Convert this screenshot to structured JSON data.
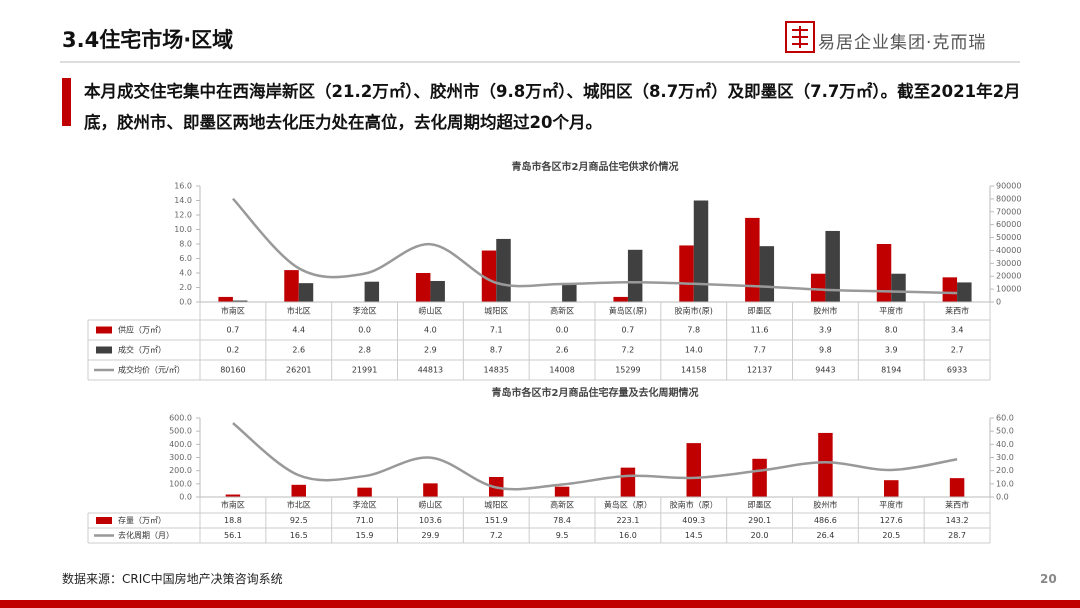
{
  "header": {
    "title": "3.4住宅市场·区域",
    "logo": "易居企业集团·克而瑞"
  },
  "summary": "本月成交住宅集中在西海岸新区（21.2万㎡）、胶州市（9.8万㎡）、城阳区（8.7万㎡）及即墨区（7.7万㎡）。截至2021年2月底，胶州市、即墨区两地去化压力处在高位，去化周期均超过20个月。",
  "footer": {
    "source": "数据来源：CRIC中国房地产决策咨询系统",
    "page": "20"
  },
  "chart_data": [
    {
      "type": "bar",
      "title": "青岛市各区市2月商品住宅供求价情况",
      "categories": [
        "市南区",
        "市北区",
        "李沧区",
        "崂山区",
        "城阳区",
        "高新区",
        "黄岛区(原)",
        "胶南市(原)",
        "即墨区",
        "胶州市",
        "平度市",
        "莱西市"
      ],
      "series": [
        {
          "name": "供应（万㎡）",
          "color": "#c00000",
          "values": [
            0.7,
            4.4,
            0.0,
            4.0,
            7.1,
            0.0,
            0.7,
            7.8,
            11.6,
            3.9,
            8.0,
            3.4
          ],
          "value_labels": [
            "0.7",
            "4.4",
            "0.0",
            "4.0",
            "7.1",
            "0.0",
            "0.7",
            "7.8",
            "11.6",
            "3.9",
            "8.0",
            "3.4"
          ]
        },
        {
          "name": "成交（万㎡）",
          "color": "#404040",
          "values": [
            0.2,
            2.6,
            2.8,
            2.9,
            8.7,
            2.6,
            7.2,
            14.0,
            7.7,
            9.8,
            3.9,
            2.7
          ],
          "value_labels": [
            "0.2",
            "2.6",
            "2.8",
            "2.9",
            "8.7",
            "2.6",
            "7.2",
            "14.0",
            "7.7",
            "9.8",
            "3.9",
            "2.7"
          ]
        },
        {
          "name": "成交均价（元/㎡）",
          "color": "#999999",
          "type": "line",
          "axis": "y2",
          "values": [
            80160,
            26201,
            21991,
            44813,
            14835,
            14008,
            15299,
            14158,
            12137,
            9443,
            8194,
            6933
          ]
        }
      ],
      "ylim": [
        0,
        16
      ],
      "yticks": [
        {
          "value": 0,
          "label": "0.0"
        },
        {
          "value": 2,
          "label": "2.0"
        },
        {
          "value": 4,
          "label": "4.0"
        },
        {
          "value": 6,
          "label": "6.0"
        },
        {
          "value": 8,
          "label": "8.0"
        },
        {
          "value": 10,
          "label": "10.0"
        },
        {
          "value": 12,
          "label": "12.0"
        },
        {
          "value": 14,
          "label": "14.0"
        },
        {
          "value": 16,
          "label": "16.0"
        }
      ],
      "y2lim": [
        0,
        90000
      ],
      "y2ticks": [
        0,
        10000,
        20000,
        30000,
        40000,
        50000,
        60000,
        70000,
        80000,
        90000
      ]
    },
    {
      "type": "bar",
      "title": "青岛市各区市2月商品住宅存量及去化周期情况",
      "categories": [
        "市南区",
        "市北区",
        "李沧区",
        "崂山区",
        "城阳区",
        "高新区",
        "黄岛区（原）",
        "胶南市（原）",
        "即墨区",
        "胶州市",
        "平度市",
        "莱西市"
      ],
      "series": [
        {
          "name": "存量（万㎡）",
          "color": "#c00000",
          "values": [
            18.8,
            92.5,
            71.0,
            103.6,
            151.9,
            78.4,
            223.1,
            409.3,
            290.1,
            486.6,
            127.6,
            143.2
          ],
          "value_labels": [
            "18.8",
            "92.5",
            "71.0",
            "103.6",
            "151.9",
            "78.4",
            "223.1",
            "409.3",
            "290.1",
            "486.6",
            "127.6",
            "143.2"
          ]
        },
        {
          "name": "去化周期（月）",
          "color": "#999999",
          "type": "line",
          "axis": "y2",
          "values": [
            56.1,
            16.5,
            15.9,
            29.9,
            7.2,
            9.5,
            16.0,
            14.5,
            20.0,
            26.4,
            20.5,
            28.7
          ],
          "value_labels": [
            "56.1",
            "16.5",
            "15.9",
            "29.9",
            "7.2",
            "9.5",
            "16.0",
            "14.5",
            "20.0",
            "26.4",
            "20.5",
            "28.7"
          ]
        }
      ],
      "ylim": [
        0,
        600
      ],
      "yticks": [
        {
          "value": 0,
          "label": "0.0"
        },
        {
          "value": 100,
          "label": "100.0"
        },
        {
          "value": 200,
          "label": "200.0"
        },
        {
          "value": 300,
          "label": "300.0"
        },
        {
          "value": 400,
          "label": "400.0"
        },
        {
          "value": 500,
          "label": "500.0"
        },
        {
          "value": 600,
          "label": "600.0"
        }
      ],
      "y2lim": [
        0,
        60
      ],
      "y2ticks": [
        {
          "value": 0,
          "label": "0.0"
        },
        {
          "value": 10,
          "label": "10.0"
        },
        {
          "value": 20,
          "label": "20.0"
        },
        {
          "value": 30,
          "label": "30.0"
        },
        {
          "value": 40,
          "label": "40.0"
        },
        {
          "value": 50,
          "label": "50.0"
        },
        {
          "value": 60,
          "label": "60.0"
        }
      ]
    }
  ]
}
